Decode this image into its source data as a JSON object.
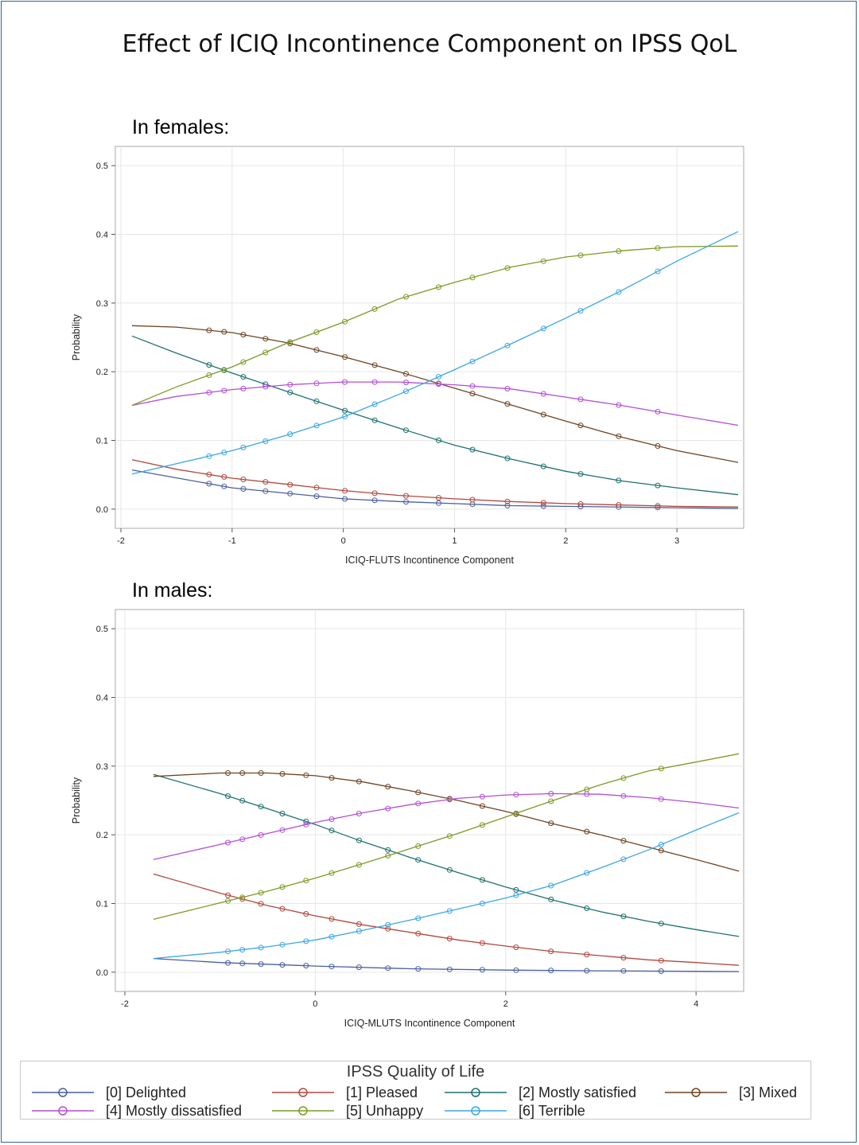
{
  "title": "Effect of ICIQ Incontinence Component on IPSS QoL",
  "sections": {
    "females_label": "In females:",
    "males_label": "In males:"
  },
  "legend": {
    "title": "IPSS Quality of Life",
    "items": [
      {
        "label": "[0] Delighted",
        "color": "#4a5f9f"
      },
      {
        "label": "[1] Pleased",
        "color": "#b0483e"
      },
      {
        "label": "[2] Mostly satisfied",
        "color": "#1f7070"
      },
      {
        "label": "[3] Mixed",
        "color": "#6e4422"
      },
      {
        "label": "[4] Mostly dissatisfied",
        "color": "#b24fd4"
      },
      {
        "label": "[5] Unhappy",
        "color": "#7c9a24"
      },
      {
        "label": "[6] Terrible",
        "color": "#3aa6e4"
      }
    ]
  },
  "chart_data": [
    {
      "type": "line",
      "title": "In females:",
      "xlabel": "ICIQ-FLUTS Incontinence Component",
      "ylabel": "Probability",
      "xlim": [
        -2.05,
        3.6
      ],
      "ylim": [
        -0.028,
        0.528
      ],
      "xticks": [
        -2,
        -1,
        0,
        1,
        2,
        3
      ],
      "yticks": [
        0.0,
        0.1,
        0.2,
        0.3,
        0.4,
        0.5
      ],
      "xtick_labels": [
        "-2",
        "-1",
        "0",
        "1",
        "2",
        "3"
      ],
      "ytick_labels": [
        "0.0",
        "0.1",
        "0.2",
        "0.3",
        "0.4",
        "0.5"
      ],
      "grid": true,
      "series": [
        {
          "name": "[0] Delighted",
          "x": [
            -1.9,
            -1.0,
            -0.5,
            0,
            0.5,
            1.0,
            1.5,
            2.0,
            3.0,
            3.55
          ],
          "y": [
            0.057,
            0.031,
            0.023,
            0.015,
            0.011,
            0.008,
            0.005,
            0.004,
            0.002,
            0.001
          ]
        },
        {
          "name": "[1] Pleased",
          "x": [
            -1.9,
            -1.5,
            -1.0,
            -0.5,
            0,
            0.5,
            1.0,
            1.5,
            2.0,
            3.0,
            3.55
          ],
          "y": [
            0.072,
            0.058,
            0.045,
            0.036,
            0.027,
            0.02,
            0.015,
            0.011,
            0.008,
            0.004,
            0.003
          ]
        },
        {
          "name": "[2] Mostly satisfied",
          "x": [
            -1.9,
            -1.5,
            -1.0,
            -0.5,
            0,
            0.5,
            1.0,
            1.5,
            2.0,
            2.5,
            3.0,
            3.55
          ],
          "y": [
            0.252,
            0.227,
            0.198,
            0.171,
            0.144,
            0.118,
            0.093,
            0.073,
            0.055,
            0.041,
            0.031,
            0.021
          ]
        },
        {
          "name": "[3] Mixed",
          "x": [
            -1.9,
            -1.5,
            -1.0,
            -0.5,
            0,
            0.5,
            1.0,
            1.5,
            2.0,
            2.5,
            3.0,
            3.55
          ],
          "y": [
            0.267,
            0.265,
            0.257,
            0.242,
            0.222,
            0.2,
            0.176,
            0.152,
            0.128,
            0.105,
            0.085,
            0.068
          ]
        },
        {
          "name": "[4] Mostly dissatisfied",
          "x": [
            -1.9,
            -1.5,
            -1.0,
            -0.5,
            0,
            0.5,
            1.0,
            1.5,
            2.0,
            2.5,
            3.0,
            3.55
          ],
          "y": [
            0.151,
            0.164,
            0.174,
            0.181,
            0.185,
            0.185,
            0.181,
            0.175,
            0.163,
            0.151,
            0.137,
            0.122
          ]
        },
        {
          "name": "[5] Unhappy",
          "x": [
            -1.9,
            -1.5,
            -1.0,
            -0.5,
            0,
            0.5,
            1.0,
            1.5,
            2.0,
            2.5,
            3.0,
            3.55
          ],
          "y": [
            0.151,
            0.178,
            0.207,
            0.242,
            0.272,
            0.306,
            0.33,
            0.352,
            0.367,
            0.376,
            0.382,
            0.383
          ]
        },
        {
          "name": "[6] Terrible",
          "x": [
            -1.9,
            -1.5,
            -1.0,
            -0.5,
            0,
            0.5,
            1.0,
            1.5,
            2.0,
            2.5,
            3.0,
            3.55
          ],
          "y": [
            0.051,
            0.066,
            0.085,
            0.108,
            0.134,
            0.167,
            0.203,
            0.24,
            0.278,
            0.318,
            0.361,
            0.404
          ]
        }
      ]
    },
    {
      "type": "line",
      "title": "In males:",
      "xlabel": "ICIQ-MLUTS Incontinence Component",
      "ylabel": "Probability",
      "xlim": [
        -2.1,
        4.5
      ],
      "ylim": [
        -0.028,
        0.528
      ],
      "xticks": [
        -2,
        0,
        2,
        4
      ],
      "yticks": [
        0.0,
        0.1,
        0.2,
        0.3,
        0.4,
        0.5
      ],
      "xtick_labels": [
        "-2",
        "0",
        "2",
        "4"
      ],
      "ytick_labels": [
        "0.0",
        "0.1",
        "0.2",
        "0.3",
        "0.4",
        "0.5"
      ],
      "grid": true,
      "series": [
        {
          "name": "[0] Delighted",
          "x": [
            -1.7,
            -1.0,
            0,
            1.0,
            2.0,
            3.0,
            4.45
          ],
          "y": [
            0.02,
            0.014,
            0.009,
            0.005,
            0.003,
            0.002,
            0.001
          ]
        },
        {
          "name": "[1] Pleased",
          "x": [
            -1.7,
            -1.0,
            -0.5,
            0,
            0.5,
            1.0,
            1.5,
            2.0,
            2.5,
            3.0,
            3.5,
            4.0,
            4.45
          ],
          "y": [
            0.143,
            0.115,
            0.097,
            0.082,
            0.069,
            0.058,
            0.047,
            0.038,
            0.03,
            0.024,
            0.018,
            0.014,
            0.01
          ]
        },
        {
          "name": "[2] Mostly satisfied",
          "x": [
            -1.7,
            -1.0,
            -0.5,
            0,
            0.5,
            1.0,
            1.5,
            2.0,
            2.5,
            3.0,
            3.5,
            4.0,
            4.45
          ],
          "y": [
            0.288,
            0.26,
            0.238,
            0.215,
            0.19,
            0.167,
            0.145,
            0.124,
            0.105,
            0.088,
            0.074,
            0.062,
            0.052
          ]
        },
        {
          "name": "[3] Mixed",
          "x": [
            -1.7,
            -1.0,
            -0.5,
            0,
            0.5,
            1.0,
            1.5,
            2.0,
            2.5,
            3.0,
            3.5,
            4.0,
            4.45
          ],
          "y": [
            0.285,
            0.29,
            0.29,
            0.286,
            0.277,
            0.264,
            0.25,
            0.234,
            0.216,
            0.2,
            0.182,
            0.164,
            0.147
          ]
        },
        {
          "name": "[4] Mostly dissatisfied",
          "x": [
            -1.7,
            -1.0,
            -0.5,
            0,
            0.5,
            1.0,
            1.5,
            2.0,
            2.5,
            3.0,
            3.5,
            4.0,
            4.45
          ],
          "y": [
            0.164,
            0.186,
            0.202,
            0.218,
            0.232,
            0.244,
            0.253,
            0.258,
            0.26,
            0.259,
            0.254,
            0.247,
            0.239
          ]
        },
        {
          "name": "[5] Unhappy",
          "x": [
            -1.7,
            -1.0,
            -0.5,
            0,
            0.5,
            1.0,
            1.5,
            2.0,
            2.5,
            3.0,
            3.5,
            4.0,
            4.45
          ],
          "y": [
            0.077,
            0.101,
            0.118,
            0.137,
            0.158,
            0.18,
            0.202,
            0.226,
            0.25,
            0.273,
            0.293,
            0.306,
            0.318
          ]
        },
        {
          "name": "[6] Terrible",
          "x": [
            -1.7,
            -1.0,
            -0.5,
            0,
            0.5,
            1.0,
            1.5,
            2.0,
            2.5,
            3.0,
            3.5,
            4.0,
            4.45
          ],
          "y": [
            0.02,
            0.029,
            0.037,
            0.047,
            0.061,
            0.076,
            0.092,
            0.108,
            0.127,
            0.152,
            0.178,
            0.207,
            0.232
          ]
        }
      ]
    }
  ]
}
